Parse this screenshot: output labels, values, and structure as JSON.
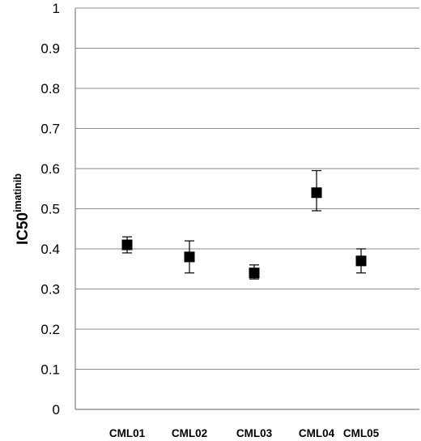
{
  "chart_data": {
    "type": "scatter",
    "title": "",
    "xlabel": "",
    "ylabel_main": "IC50",
    "ylabel_sup": "imatinib",
    "ylim": [
      0,
      1
    ],
    "yticks": [
      "0",
      "0.1",
      "0.2",
      "0.3",
      "0.4",
      "0.5",
      "0.6",
      "0.7",
      "0.8",
      "0.9",
      "1"
    ],
    "grid": true,
    "legend": "none",
    "marker": "square",
    "color": "#000000",
    "categories": [
      "CML01",
      "CML02",
      "CML03",
      "CML04",
      "CML05"
    ],
    "values": [
      0.41,
      0.38,
      0.34,
      0.54,
      0.37
    ],
    "error_upper": [
      0.43,
      0.42,
      0.36,
      0.595,
      0.4
    ],
    "error_lower": [
      0.39,
      0.34,
      0.325,
      0.495,
      0.34
    ]
  }
}
